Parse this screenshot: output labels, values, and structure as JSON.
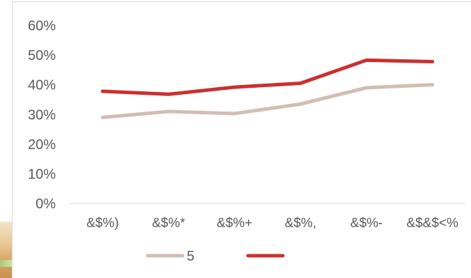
{
  "chart_data": {
    "type": "line",
    "categories": [
      "&$%)",
      "&$%*",
      "&$%+",
      "&$%,",
      "&$%-",
      "&$&$<%"
    ],
    "yticks": [
      "0%",
      "10%",
      "20%",
      "30%",
      "40%",
      "50%",
      "60%"
    ],
    "ylim": [
      0,
      60
    ],
    "series": [
      {
        "name": "5",
        "color": "#d2bdb3",
        "values": [
          29,
          31,
          30.3,
          33.5,
          39,
          40
        ]
      },
      {
        "name": "",
        "color": "#cc2f2f",
        "values": [
          37.8,
          36.8,
          39.2,
          40.5,
          48.3,
          47.8
        ]
      }
    ],
    "grid": false,
    "legend": "bottom"
  }
}
